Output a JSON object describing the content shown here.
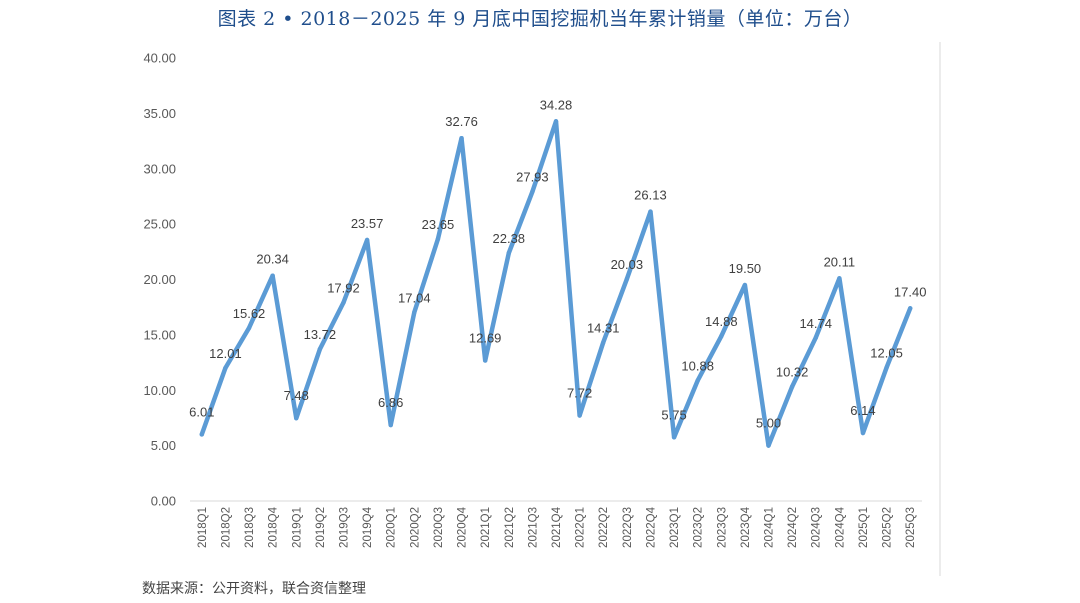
{
  "title": "图表 2 • 2018－2025 年 9 月底中国挖掘机当年累计销量（单位：万台）",
  "source": "数据来源：公开资料，联合资信整理",
  "chart_data": {
    "type": "line",
    "categories": [
      "2018Q1",
      "2018Q2",
      "2018Q3",
      "2018Q4",
      "2019Q1",
      "2019Q2",
      "2019Q3",
      "2019Q4",
      "2020Q1",
      "2020Q2",
      "2020Q3",
      "2020Q4",
      "2021Q1",
      "2021Q2",
      "2021Q3",
      "2021Q4",
      "2022Q1",
      "2022Q2",
      "2022Q3",
      "2022Q4",
      "2023Q1",
      "2023Q2",
      "2023Q3",
      "2023Q4",
      "2024Q1",
      "2024Q2",
      "2024Q3",
      "2024Q4",
      "2025Q1",
      "2025Q2",
      "2025Q3"
    ],
    "values": [
      6.01,
      12.01,
      15.62,
      20.34,
      7.48,
      13.72,
      17.92,
      23.57,
      6.86,
      17.04,
      23.65,
      32.76,
      12.69,
      22.38,
      27.93,
      34.28,
      7.72,
      14.31,
      20.03,
      26.13,
      5.75,
      10.88,
      14.88,
      19.5,
      5.0,
      10.32,
      14.74,
      20.11,
      6.14,
      12.05,
      17.4
    ],
    "labels": [
      "6.01",
      "12.01",
      "15.62",
      "20.34",
      "7.48",
      "13.72",
      "17.92",
      "23.57",
      "6.86",
      "17.04",
      "23.65",
      "32.76",
      "12.69",
      "22.38",
      "27.93",
      "34.28",
      "7.72",
      "14.31",
      "20.03",
      "26.13",
      "5.75",
      "10.88",
      "14.88",
      "19.50",
      "5.00",
      "10.32",
      "14.74",
      "20.11",
      "6.14",
      "12.05",
      "17.40"
    ],
    "yticks": [
      "0.00",
      "5.00",
      "10.00",
      "15.00",
      "20.00",
      "25.00",
      "30.00",
      "35.00",
      "40.00"
    ],
    "ylim": [
      0,
      40
    ],
    "grid": false,
    "legend": "none",
    "line_color": "#5b9bd5"
  }
}
